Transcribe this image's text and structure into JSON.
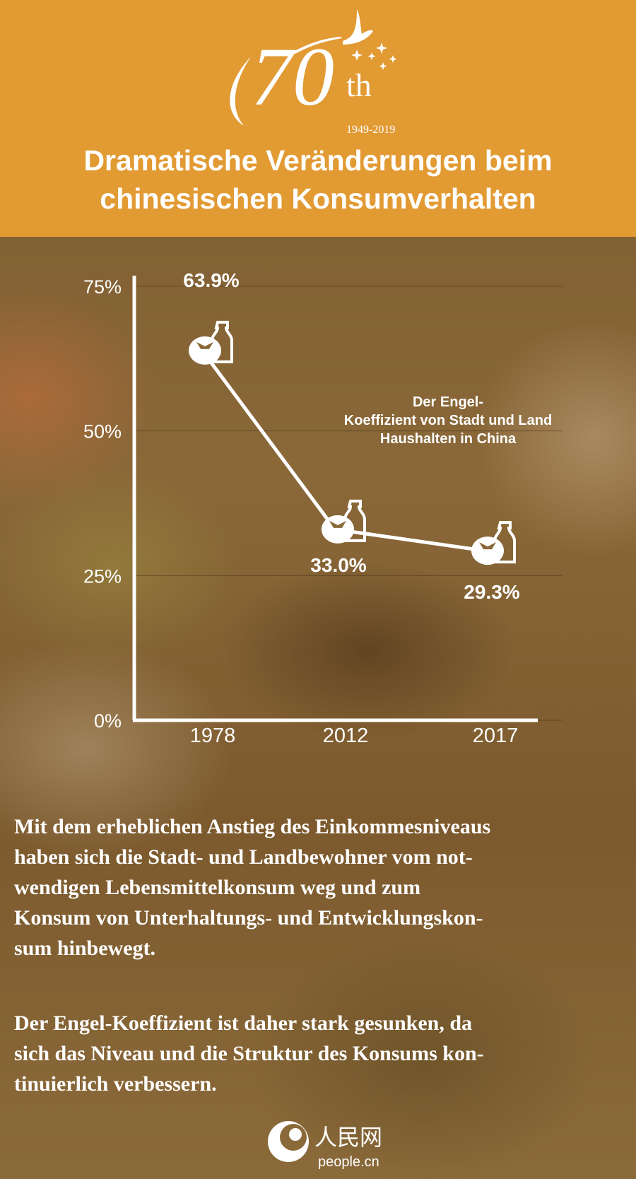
{
  "header": {
    "logo": {
      "number": "70",
      "suffix": "th",
      "years": "1949-2019"
    },
    "title_line1": "Dramatische Veränderungen beim",
    "title_line2": "chinesischen Konsumverhalten",
    "background_color": "#e29a33"
  },
  "chart_data": {
    "type": "line",
    "title": "Der Engel-Koeffizient von Stadt und Land Haushalten in China",
    "title_lines": [
      "Der Engel-",
      "Koeffizient von Stadt und Land",
      "Haushalten in China"
    ],
    "categories": [
      "1978",
      "2012",
      "2017"
    ],
    "values": [
      63.9,
      33.0,
      29.3
    ],
    "data_labels": [
      "63.9%",
      "33.0%",
      "29.3%"
    ],
    "yticks": [
      "0%",
      "25%",
      "50%",
      "75%"
    ],
    "ylim": [
      0,
      75
    ],
    "grid": true,
    "marker_icon": "tomato-and-bottle-icon",
    "line_color": "#ffffff"
  },
  "body": {
    "paragraph1": [
      "Mit dem erheblichen Anstieg des Einkommesniveaus",
      "haben sich die Stadt- und Landbewohner vom not-",
      "wendigen Lebensmittelkonsum weg und zum",
      "Konsum von Unterhaltungs- und  Entwicklungskon-",
      "sum hinbewegt."
    ],
    "paragraph2": [
      "Der Engel-Koeffizient ist daher stark gesunken, da",
      "sich das Niveau und die Struktur des Konsums kon-",
      "tinuierlich verbessern."
    ]
  },
  "footer": {
    "brand_cn": "人民网",
    "brand_url": "people.cn"
  }
}
